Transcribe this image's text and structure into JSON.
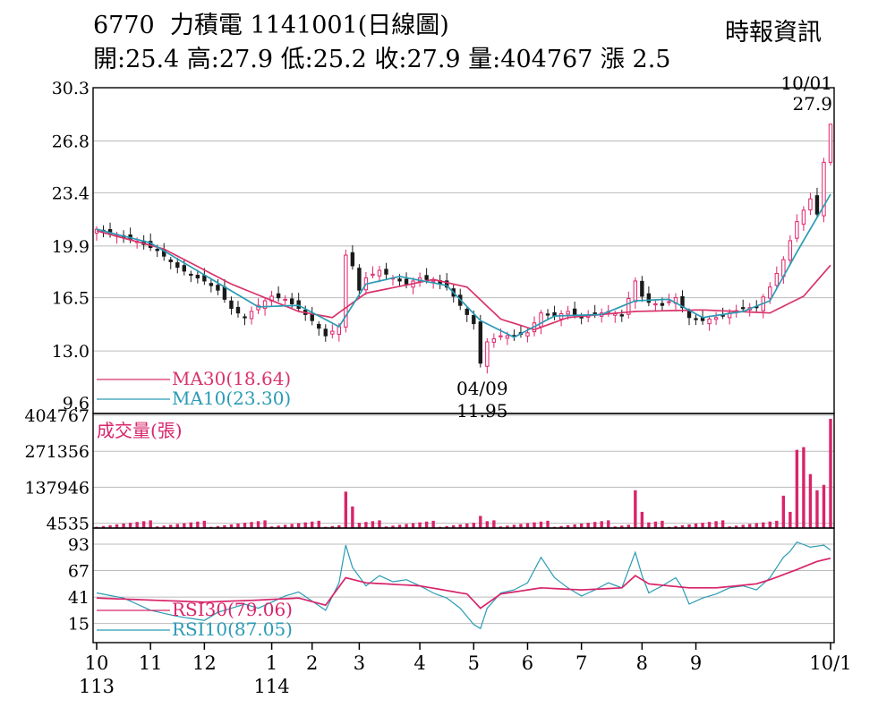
{
  "header": {
    "code": "6770",
    "name": "力積電",
    "date": "1141001(日線圖)",
    "ohlc": "開:25.4 高:27.9 低:25.2 收:27.9 量:404767 漲 2.5",
    "source": "時報資訊"
  },
  "colors": {
    "up": "#e0226a",
    "down": "#1a1a1a",
    "ma30": "#d9336b",
    "ma10": "#2a9bb5",
    "rsi30": "#d8246a",
    "rsi10": "#2a9bb5",
    "volume": "#d8246a",
    "grid": "#bbbbbb"
  },
  "chart_data": [
    {
      "type": "candlestick",
      "title": "6770 力積電 1141001(日線圖)",
      "ylim": [
        9.6,
        30.3
      ],
      "yticks": [
        "30.3",
        "26.8",
        "23.4",
        "19.9",
        "16.5",
        "13.0",
        "9.6"
      ],
      "x_ticks": [
        {
          "label": "10",
          "sub": "113"
        },
        {
          "label": "11",
          "sub": ""
        },
        {
          "label": "12",
          "sub": ""
        },
        {
          "label": "1",
          "sub": "114"
        },
        {
          "label": "2",
          "sub": ""
        },
        {
          "label": "3",
          "sub": ""
        },
        {
          "label": "4",
          "sub": ""
        },
        {
          "label": "5",
          "sub": ""
        },
        {
          "label": "6",
          "sub": ""
        },
        {
          "label": "7",
          "sub": ""
        },
        {
          "label": "8",
          "sub": ""
        },
        {
          "label": "9",
          "sub": ""
        },
        {
          "label": "10/1",
          "sub": ""
        }
      ],
      "close_path": [
        [
          0,
          21.0
        ],
        [
          3,
          20.6
        ],
        [
          6,
          20.2
        ],
        [
          9,
          19.6
        ],
        [
          12,
          18.5
        ],
        [
          14,
          18.0
        ],
        [
          16,
          17.6
        ],
        [
          18,
          17.0
        ],
        [
          20,
          15.8
        ],
        [
          22,
          15.2
        ],
        [
          24,
          16.0
        ],
        [
          26,
          16.6
        ],
        [
          28,
          16.4
        ],
        [
          30,
          15.8
        ],
        [
          32,
          15.0
        ],
        [
          34,
          14.0
        ],
        [
          36,
          14.6
        ],
        [
          37,
          19.3
        ],
        [
          38,
          18.6
        ],
        [
          39,
          17.0
        ],
        [
          40,
          17.8
        ],
        [
          42,
          18.3
        ],
        [
          44,
          17.8
        ],
        [
          46,
          17.4
        ],
        [
          48,
          17.8
        ],
        [
          50,
          17.6
        ],
        [
          52,
          17.2
        ],
        [
          54,
          16.0
        ],
        [
          56,
          14.8
        ],
        [
          57,
          12.2
        ],
        [
          58,
          13.6
        ],
        [
          60,
          14.0
        ],
        [
          62,
          14.0
        ],
        [
          64,
          14.2
        ],
        [
          66,
          15.5
        ],
        [
          68,
          15.3
        ],
        [
          70,
          15.6
        ],
        [
          72,
          15.2
        ],
        [
          74,
          15.4
        ],
        [
          76,
          15.6
        ],
        [
          78,
          15.3
        ],
        [
          80,
          17.6
        ],
        [
          81,
          16.6
        ],
        [
          82,
          16.2
        ],
        [
          84,
          16.0
        ],
        [
          86,
          16.5
        ],
        [
          88,
          15.2
        ],
        [
          90,
          15.0
        ],
        [
          92,
          15.2
        ],
        [
          94,
          15.5
        ],
        [
          96,
          15.8
        ],
        [
          98,
          15.9
        ],
        [
          100,
          17.2
        ],
        [
          102,
          19.0
        ],
        [
          104,
          21.5
        ],
        [
          106,
          23.0
        ],
        [
          107,
          22.0
        ],
        [
          108,
          25.4
        ],
        [
          109,
          27.9
        ]
      ],
      "ma30_path": [
        [
          0,
          20.9
        ],
        [
          10,
          19.7
        ],
        [
          20,
          17.4
        ],
        [
          30,
          15.6
        ],
        [
          35,
          15.2
        ],
        [
          40,
          16.8
        ],
        [
          50,
          17.7
        ],
        [
          55,
          17.2
        ],
        [
          60,
          15.1
        ],
        [
          65,
          14.4
        ],
        [
          70,
          15.2
        ],
        [
          80,
          15.6
        ],
        [
          90,
          15.7
        ],
        [
          100,
          15.5
        ],
        [
          105,
          16.6
        ],
        [
          109,
          18.64
        ]
      ],
      "ma10_path": [
        [
          0,
          21.0
        ],
        [
          8,
          20.1
        ],
        [
          16,
          18.0
        ],
        [
          24,
          15.9
        ],
        [
          30,
          16.0
        ],
        [
          36,
          14.6
        ],
        [
          40,
          17.4
        ],
        [
          45,
          17.9
        ],
        [
          52,
          17.3
        ],
        [
          57,
          15.0
        ],
        [
          62,
          13.9
        ],
        [
          68,
          15.3
        ],
        [
          75,
          15.4
        ],
        [
          80,
          16.3
        ],
        [
          85,
          16.4
        ],
        [
          90,
          15.2
        ],
        [
          96,
          15.6
        ],
        [
          100,
          16.3
        ],
        [
          104,
          19.5
        ],
        [
          109,
          23.3
        ]
      ],
      "legend": [
        {
          "name": "MA30(18.64)",
          "value": 18.64
        },
        {
          "name": "MA10(23.30)",
          "value": 23.3
        }
      ],
      "annotations": [
        {
          "date": "10/01",
          "value": "27.9",
          "text": "10/01\n27.9"
        },
        {
          "date": "04/09",
          "value": "11.95",
          "text": "04/09\n11.95"
        }
      ],
      "last": {
        "open": 25.4,
        "high": 27.9,
        "low": 25.2,
        "close": 27.9
      }
    },
    {
      "type": "bar",
      "title": "成交量(張)",
      "ylabel": "成交量(張)",
      "yticks": [
        "404767",
        "271356",
        "137946",
        "4535"
      ],
      "ylim": [
        0,
        404767
      ],
      "spikes": [
        {
          "i": 37,
          "v": 135000
        },
        {
          "i": 38,
          "v": 80000
        },
        {
          "i": 57,
          "v": 45000
        },
        {
          "i": 80,
          "v": 140000
        },
        {
          "i": 81,
          "v": 60000
        },
        {
          "i": 102,
          "v": 120000
        },
        {
          "i": 103,
          "v": 60000
        },
        {
          "i": 104,
          "v": 290000
        },
        {
          "i": 105,
          "v": 300000
        },
        {
          "i": 106,
          "v": 200000
        },
        {
          "i": 107,
          "v": 140000
        },
        {
          "i": 108,
          "v": 160000
        },
        {
          "i": 109,
          "v": 404767
        }
      ]
    },
    {
      "type": "line",
      "title": "RSI",
      "yticks": [
        "93",
        "67",
        "41",
        "15"
      ],
      "ylim": [
        5,
        100
      ],
      "series": [
        {
          "name": "RSI30(79.06)",
          "path": [
            [
              0,
              40
            ],
            [
              8,
              38
            ],
            [
              16,
              36
            ],
            [
              24,
              38
            ],
            [
              30,
              40
            ],
            [
              34,
              33
            ],
            [
              37,
              60
            ],
            [
              40,
              55
            ],
            [
              48,
              52
            ],
            [
              55,
              44
            ],
            [
              57,
              30
            ],
            [
              60,
              44
            ],
            [
              66,
              50
            ],
            [
              72,
              48
            ],
            [
              78,
              50
            ],
            [
              80,
              62
            ],
            [
              82,
              54
            ],
            [
              88,
              50
            ],
            [
              92,
              50
            ],
            [
              98,
              54
            ],
            [
              100,
              58
            ],
            [
              104,
              68
            ],
            [
              107,
              76
            ],
            [
              109,
              79.06
            ]
          ]
        },
        {
          "name": "RSI10(87.05)",
          "path": [
            [
              0,
              45
            ],
            [
              4,
              40
            ],
            [
              8,
              28
            ],
            [
              12,
              22
            ],
            [
              16,
              18
            ],
            [
              18,
              26
            ],
            [
              22,
              34
            ],
            [
              24,
              30
            ],
            [
              28,
              42
            ],
            [
              30,
              46
            ],
            [
              34,
              28
            ],
            [
              36,
              55
            ],
            [
              37,
              92
            ],
            [
              38,
              70
            ],
            [
              40,
              52
            ],
            [
              42,
              62
            ],
            [
              44,
              56
            ],
            [
              46,
              58
            ],
            [
              48,
              52
            ],
            [
              50,
              45
            ],
            [
              52,
              40
            ],
            [
              54,
              30
            ],
            [
              56,
              14
            ],
            [
              57,
              10
            ],
            [
              58,
              30
            ],
            [
              60,
              45
            ],
            [
              62,
              48
            ],
            [
              64,
              55
            ],
            [
              66,
              80
            ],
            [
              67,
              70
            ],
            [
              68,
              60
            ],
            [
              70,
              50
            ],
            [
              72,
              42
            ],
            [
              74,
              48
            ],
            [
              76,
              55
            ],
            [
              78,
              50
            ],
            [
              80,
              85
            ],
            [
              81,
              62
            ],
            [
              82,
              45
            ],
            [
              84,
              52
            ],
            [
              86,
              60
            ],
            [
              87,
              50
            ],
            [
              88,
              34
            ],
            [
              90,
              40
            ],
            [
              92,
              44
            ],
            [
              94,
              50
            ],
            [
              96,
              52
            ],
            [
              98,
              48
            ],
            [
              100,
              60
            ],
            [
              102,
              80
            ],
            [
              103,
              86
            ],
            [
              104,
              95
            ],
            [
              106,
              90
            ],
            [
              108,
              92
            ],
            [
              109,
              87.05
            ]
          ]
        }
      ]
    }
  ]
}
